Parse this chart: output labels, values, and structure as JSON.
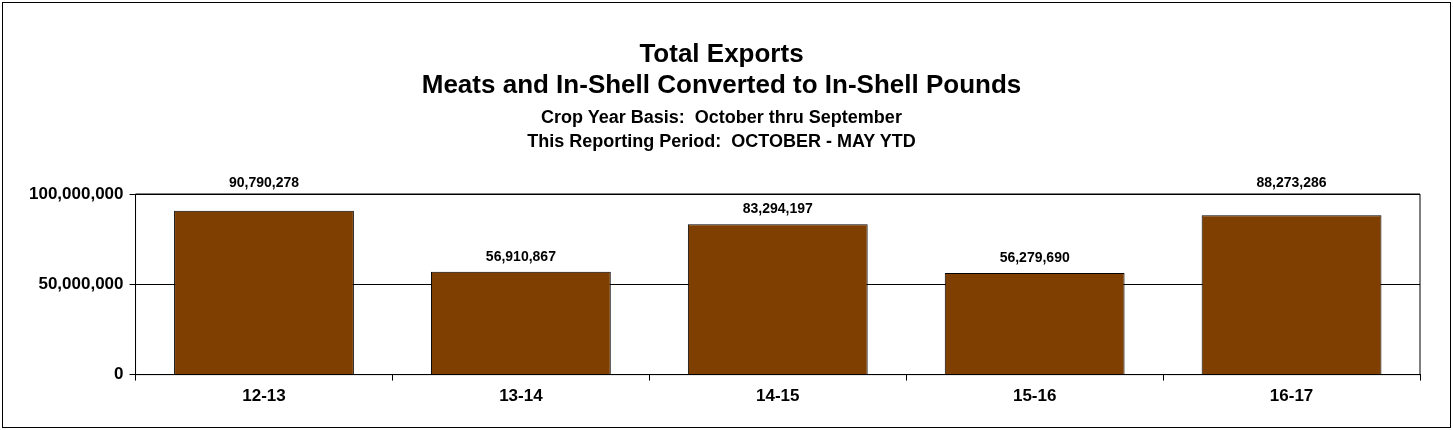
{
  "chart_data": {
    "type": "bar",
    "title": "Total Exports\nMeats and In-Shell Converted to In-Shell Pounds",
    "subtitle": "Crop Year Basis:  October thru September\nThis Reporting Period:  OCTOBER - MAY YTD",
    "categories": [
      "12-13",
      "13-14",
      "14-15",
      "15-16",
      "16-17"
    ],
    "values": [
      90790278,
      56910867,
      83294197,
      56279690,
      88273286
    ],
    "color": "#7f3f00",
    "ylim": [
      0,
      100000000
    ],
    "yticks": [
      {
        "value": 0,
        "label": "0"
      },
      {
        "value": 50000000,
        "label": "50,000,000"
      },
      {
        "value": 100000000,
        "label": "100,000,000"
      }
    ],
    "value_labels": [
      "90,790,278",
      "56,910,867",
      "83,294,197",
      "56,279,690",
      "88,273,286"
    ],
    "grid": "y",
    "legend": false
  }
}
